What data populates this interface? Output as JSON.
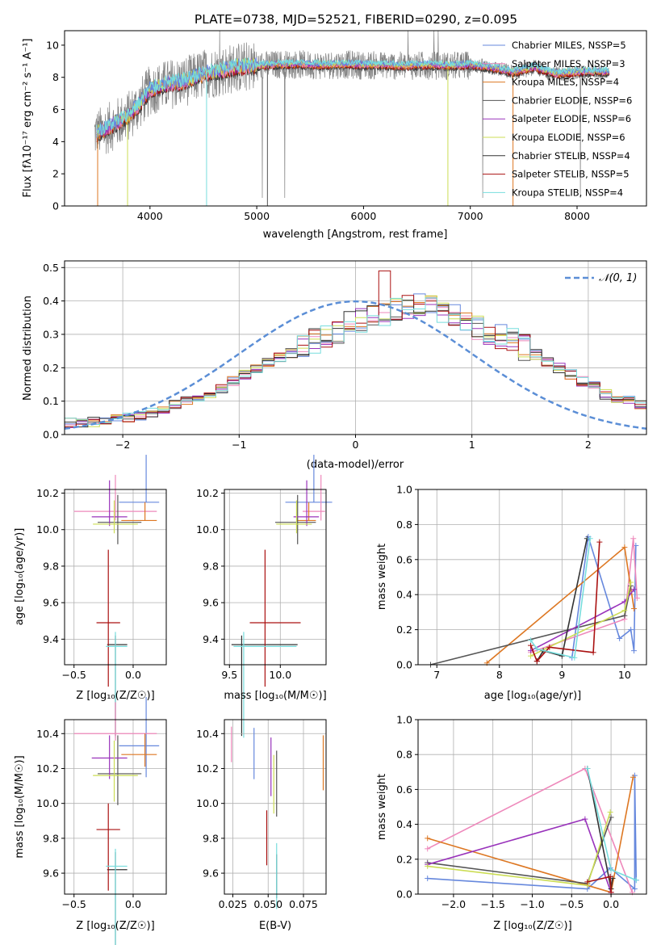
{
  "figure": {
    "title": "PLATE=0738, MJD=52521, FIBERID=0290, z=0.095"
  },
  "colors": {
    "C1": "#6688dd",
    "C2": "#ee88bb",
    "C3": "#dd7722",
    "C4": "#555555",
    "C5": "#9933bb",
    "C6": "#ccdd55",
    "C7": "#333333",
    "C8": "#aa1111",
    "C9": "#77dddd",
    "data": "#808080",
    "normal": "#5b8ed6"
  },
  "chart_data": [
    {
      "type": "line",
      "title": "PLATE=0738, MJD=52521, FIBERID=0290, z=0.095",
      "xlabel": "wavelength [Angstrom, rest frame]",
      "ylabel": "Flux [fλ10⁻¹⁷ erg cm⁻² s⁻¹ A⁻¹]",
      "xlim": [
        3200,
        8650
      ],
      "ylim": [
        0,
        10.9
      ],
      "xticks": [
        "4000",
        "5000",
        "6000",
        "7000",
        "8000"
      ],
      "yticks": [
        "0",
        "2",
        "4",
        "6",
        "8",
        "10"
      ],
      "grid": false,
      "legend_position": "right",
      "legend": [
        "Chabrier MILES, NSSP=5",
        "Salpeter MILES, NSSP=3",
        "Kroupa MILES, NSSP=4",
        "Chabrier ELODIE, NSSP=6",
        "Salpeter ELODIE, NSSP=6",
        "Kroupa ELODIE, NSSP=6",
        "Chabrier STELIB, NSSP=4",
        "Salpeter STELIB, NSSP=5",
        "Kroupa STELIB, NSSP=4"
      ],
      "continuum": {
        "x": [
          3500,
          3600,
          3700,
          3800,
          3900,
          4000,
          4100,
          4200,
          4300,
          4400,
          4500,
          4600,
          4800,
          5000,
          5200,
          5400,
          5600,
          5800,
          6000,
          6200,
          6400,
          6600,
          6800,
          7000,
          7200,
          7400,
          7600,
          7800,
          8000,
          8200,
          8300
        ],
        "y": [
          4.5,
          4.8,
          5.2,
          5.6,
          6.3,
          7.2,
          7.4,
          7.6,
          7.7,
          7.9,
          8.2,
          8.3,
          8.6,
          8.7,
          8.8,
          8.8,
          8.75,
          8.8,
          8.75,
          8.75,
          8.7,
          8.75,
          8.7,
          8.75,
          8.6,
          8.3,
          8.6,
          8.2,
          8.3,
          8.35,
          8.3
        ]
      }
    },
    {
      "type": "bar",
      "xlabel": "(data-model)/error",
      "ylabel": "Normed distribution",
      "xlim": [
        -2.5,
        2.5
      ],
      "ylim": [
        0,
        0.52
      ],
      "xticks": [
        "−2",
        "−1",
        "0",
        "1",
        "2"
      ],
      "yticks": [
        "0.0",
        "0.1",
        "0.2",
        "0.3",
        "0.4",
        "0.5"
      ],
      "grid": true,
      "legend": [
        "𝒩(0, 1)"
      ],
      "legend_position": "top-right",
      "bin_edges_start": -2.5,
      "bin_width": 0.1,
      "base_values": [
        0.035,
        0.035,
        0.038,
        0.04,
        0.045,
        0.05,
        0.055,
        0.065,
        0.075,
        0.09,
        0.1,
        0.11,
        0.125,
        0.14,
        0.16,
        0.18,
        0.2,
        0.215,
        0.23,
        0.245,
        0.26,
        0.28,
        0.29,
        0.3,
        0.33,
        0.34,
        0.35,
        0.36,
        0.37,
        0.38,
        0.385,
        0.38,
        0.37,
        0.36,
        0.35,
        0.32,
        0.3,
        0.29,
        0.28,
        0.26,
        0.24,
        0.22,
        0.2,
        0.18,
        0.16,
        0.15,
        0.12,
        0.11,
        0.1,
        0.09,
        0.08
      ]
    },
    {
      "type": "scatter",
      "xlabel": "Z [log₁₀(Z/Z☉)]",
      "ylabel": "age  [log₁₀(age/yr)]",
      "xlim": [
        -0.58,
        0.28
      ],
      "ylim": [
        9.26,
        10.22
      ],
      "xticks": [
        "−0.5",
        "0.0"
      ],
      "yticks": [
        "9.4",
        "9.6",
        "9.8",
        "10.0",
        "10.2"
      ],
      "grid": true
    },
    {
      "type": "scatter",
      "xlabel": "mass [log₁₀(M/M☉)]",
      "ylabel": "",
      "xlim": [
        9.45,
        10.45
      ],
      "ylim": [
        9.26,
        10.22
      ],
      "xticks": [
        "9.5",
        "10.0"
      ],
      "yticks": [
        "9.4",
        "9.6",
        "9.8",
        "10.0",
        "10.2"
      ],
      "grid": true
    },
    {
      "type": "line",
      "xlabel": "age  [log₁₀(age/yr)]",
      "ylabel": "mass weight",
      "xlim": [
        6.7,
        10.35
      ],
      "ylim": [
        0,
        1.0
      ],
      "xticks": [
        "7",
        "8",
        "9",
        "10"
      ],
      "yticks": [
        "0.0",
        "0.2",
        "0.4",
        "0.6",
        "0.8",
        "1.0"
      ],
      "grid": true
    },
    {
      "type": "scatter",
      "xlabel": "Z [log₁₀(Z/Z☉)]",
      "ylabel": "mass [log₁₀(M/M☉)]",
      "xlim": [
        -0.58,
        0.28
      ],
      "ylim": [
        9.48,
        10.48
      ],
      "xticks": [
        "−0.5",
        "0.0"
      ],
      "yticks": [
        "9.6",
        "9.8",
        "10.0",
        "10.2",
        "10.4"
      ],
      "grid": true
    },
    {
      "type": "scatter",
      "xlabel": "E(B-V)",
      "ylabel": "",
      "xlim": [
        0.019,
        0.091
      ],
      "ylim": [
        9.48,
        10.48
      ],
      "xticks": [
        "0.025",
        "0.050",
        "0.075"
      ],
      "yticks": [
        "9.6",
        "9.8",
        "10.0",
        "10.2",
        "10.4"
      ],
      "grid": true
    },
    {
      "type": "line",
      "xlabel": "Z [log₁₀(Z/Z☉)]",
      "ylabel": "mass weight",
      "xlim": [
        -2.45,
        0.45
      ],
      "ylim": [
        0,
        1.0
      ],
      "xticks": [
        "−2.0",
        "−1.5",
        "−1.0",
        "−0.5",
        "0.0"
      ],
      "yticks": [
        "0.0",
        "0.2",
        "0.4",
        "0.6",
        "0.8",
        "1.0"
      ],
      "grid": true
    }
  ],
  "models": [
    {
      "color": "C1",
      "Z": 0.11,
      "Zerr": [
        0.23,
        0.11
      ],
      "age": 10.15,
      "ageErr": [
        0.26,
        0
      ],
      "mass": 10.33,
      "massErr": [
        0.28,
        0.18
      ],
      "ebv": 0.04,
      "ebvErr": 0.14,
      "ageW": [
        [
          9.16,
          0.04
        ],
        [
          9.42,
          0.73
        ],
        [
          9.92,
          0.15
        ],
        [
          10.1,
          0.2
        ],
        [
          10.15,
          0.08
        ],
        [
          10.18,
          0.68
        ]
      ],
      "ZW": [
        [
          -2.33,
          0.09
        ],
        [
          -0.3,
          0.03
        ],
        [
          -0.01,
          0.15
        ],
        [
          0.3,
          0.03
        ],
        [
          0.3,
          0.68
        ],
        [
          0.32,
          0.08
        ]
      ]
    },
    {
      "color": "C2",
      "Z": -0.15,
      "Zerr": [
        0.35,
        0.35
      ],
      "age": 10.1,
      "ageErr": [
        0.2,
        0.05
      ],
      "mass": 10.4,
      "massErr": [
        0.18,
        0.04
      ],
      "ebv": 0.024,
      "ebvErr": 0.12,
      "ageW": [
        [
          8.5,
          0.07
        ],
        [
          10.0,
          0.26
        ],
        [
          10.14,
          0.72
        ],
        [
          10.2,
          0.38
        ]
      ],
      "ZW": [
        [
          -2.33,
          0.26
        ],
        [
          -0.33,
          0.72
        ],
        [
          0.27,
          0.01
        ]
      ]
    },
    {
      "color": "C3",
      "Z": 0.1,
      "Zerr": [
        0.2,
        0.1
      ],
      "age": 10.05,
      "ageErr": [
        0.1,
        0
      ],
      "mass": 10.28,
      "massErr": [
        0.12,
        0.07
      ],
      "ebv": 0.089,
      "ebvErr": 0.15,
      "ageW": [
        [
          7.8,
          0.01
        ],
        [
          10.0,
          0.67
        ],
        [
          10.15,
          0.32
        ]
      ],
      "ZW": [
        [
          -2.33,
          0.32
        ],
        [
          0.0,
          0.01
        ],
        [
          0.28,
          0.67
        ]
      ]
    },
    {
      "color": "C4",
      "Z": -0.13,
      "Zerr": [
        0.17,
        0.2
      ],
      "age": 10.04,
      "ageErr": [
        0.15,
        0.12
      ],
      "mass": 10.17,
      "massErr": [
        0.22,
        0.18
      ],
      "ebv": 0.056,
      "ebvErr": 0.18,
      "ageW": [
        [
          6.9,
          0.0
        ],
        [
          10.0,
          0.28
        ],
        [
          10.1,
          0.45
        ]
      ],
      "ZW": [
        [
          -2.33,
          0.18
        ],
        [
          -0.3,
          0.06
        ],
        [
          0.0,
          0.44
        ]
      ]
    },
    {
      "color": "C5",
      "Z": -0.2,
      "Zerr": [
        0.15,
        0.15
      ],
      "age": 10.07,
      "ageErr": [
        0.2,
        0.05
      ],
      "mass": 10.26,
      "massErr": [
        0.13,
        0.12
      ],
      "ebv": 0.052,
      "ebvErr": 0.16,
      "ageW": [
        [
          8.5,
          0.08
        ],
        [
          10.0,
          0.36
        ],
        [
          10.15,
          0.43
        ]
      ],
      "ZW": [
        [
          -2.33,
          0.17
        ],
        [
          -0.33,
          0.43
        ],
        [
          0.0,
          0.01
        ]
      ]
    },
    {
      "color": "C6",
      "Z": -0.16,
      "Zerr": [
        0.18,
        0.2
      ],
      "age": 10.03,
      "ageErr": [
        0.13,
        0.05
      ],
      "mass": 10.16,
      "massErr": [
        0.2,
        0.15
      ],
      "ebv": 0.054,
      "ebvErr": 0.16,
      "ageW": [
        [
          8.5,
          0.05
        ],
        [
          10.0,
          0.31
        ],
        [
          10.1,
          0.47
        ]
      ],
      "ZW": [
        [
          -2.33,
          0.16
        ],
        [
          -0.3,
          0.05
        ],
        [
          -0.01,
          0.47
        ]
      ]
    },
    {
      "color": "C7",
      "Z": -0.15,
      "Zerr": [
        0.07,
        0.1
      ],
      "age": 9.37,
      "ageErr": [
        0.05,
        0.5
      ],
      "mass": 9.62,
      "massErr": [
        0.1,
        0.55
      ],
      "ebv": 0.056,
      "ebvErr": 0.12,
      "ageW": [
        [
          8.6,
          0.02
        ],
        [
          8.7,
          0.08
        ],
        [
          9.0,
          0.05
        ],
        [
          9.4,
          0.72
        ]
      ],
      "ZW": [
        [
          -0.3,
          0.72
        ],
        [
          0.0,
          0.03
        ],
        [
          0.02,
          0.09
        ]
      ]
    },
    {
      "color": "C8",
      "Z": -0.21,
      "Zerr": [
        0.1,
        0.1
      ],
      "age": 9.49,
      "ageErr": [
        0.4,
        0.35
      ],
      "mass": 9.85,
      "massErr": [
        0.15,
        0.35
      ],
      "ebv": 0.049,
      "ebvErr": 0.15,
      "ageW": [
        [
          8.5,
          0.11
        ],
        [
          8.6,
          0.02
        ],
        [
          8.8,
          0.1
        ],
        [
          9.5,
          0.07
        ],
        [
          9.6,
          0.7
        ]
      ],
      "ZW": [
        [
          -0.3,
          0.07
        ],
        [
          -0.01,
          0.1
        ],
        [
          0.0,
          0.01
        ]
      ]
    },
    {
      "color": "C9",
      "Z": -0.15,
      "Zerr": [
        0.08,
        0.1
      ],
      "age": 9.36,
      "ageErr": [
        0.08,
        0.5
      ],
      "mass": 9.64,
      "massErr": [
        0.1,
        0.52
      ],
      "ebv": 0.056,
      "ebvErr": 0.18,
      "ageW": [
        [
          8.5,
          0.14
        ],
        [
          8.6,
          0.09
        ],
        [
          9.2,
          0.04
        ],
        [
          9.45,
          0.72
        ]
      ],
      "ZW": [
        [
          -0.3,
          0.72
        ],
        [
          0.0,
          0.14
        ],
        [
          0.32,
          0.08
        ]
      ]
    }
  ]
}
